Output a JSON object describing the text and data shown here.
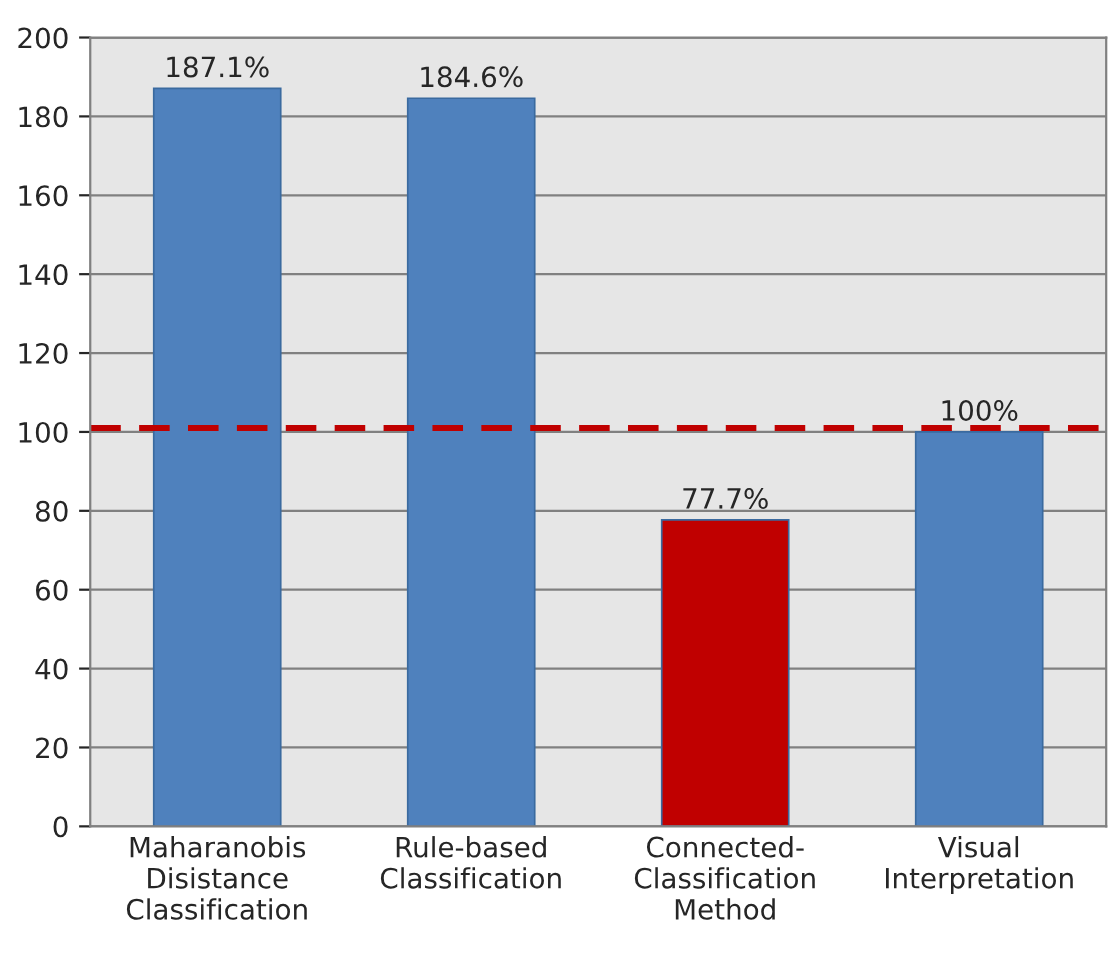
{
  "chart_data": {
    "type": "bar",
    "categories": [
      "Maharanobis\nDisistance\nClassification",
      "Rule-based\nClassification",
      "Connected-\nClassification\nMethod",
      "Visual\nInterpretation"
    ],
    "values": [
      187.1,
      184.6,
      77.7,
      100
    ],
    "colors": [
      "#4f81bd",
      "#4f81bd",
      "#c00000",
      "#4f81bd"
    ],
    "value_labels": [
      "187.1%",
      "184.6%",
      "77.7%",
      "100%"
    ],
    "ylim": [
      0,
      200
    ],
    "yticks": [
      0,
      20,
      40,
      60,
      80,
      100,
      120,
      140,
      160,
      180,
      200
    ],
    "grid": "y",
    "ref_lines": [
      {
        "axis": "y",
        "value": 101,
        "color": "#c00000",
        "line_style": "dashed"
      }
    ]
  }
}
